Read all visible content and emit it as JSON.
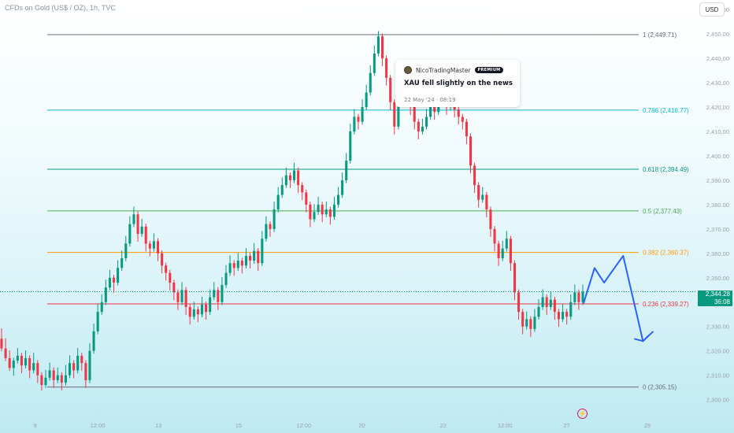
{
  "header": {
    "title": "CFDs on Gold (US$ / OZ), 1h, TVC",
    "currency_button": "USD"
  },
  "price_badge": {
    "price": "2,344.28",
    "countdown": "36:08"
  },
  "idea_card": {
    "author": "NicoTradingMaster",
    "badge": "PREMIUM",
    "headline": "XAU fell slightly on the news",
    "timestamp": "22 May '24 · 08:19"
  },
  "flash_icon": "lightning-icon",
  "colors": {
    "up": "#089981",
    "down": "#f23645",
    "projection": "#2962ff",
    "price_line": "#089981"
  },
  "chart_data": {
    "type": "candlestick",
    "title": "CFDs on Gold (US$ / OZ), 1h, TVC",
    "ylim": [
      2296,
      2462
    ],
    "y_ticks": [
      "2,460.00",
      "2,450.00",
      "2,440.00",
      "2,430.00",
      "2,420.00",
      "2,410.00",
      "2,400.00",
      "2,390.00",
      "2,380.00",
      "2,370.00",
      "2,360.00",
      "2,350.00",
      "2,340.00",
      "2,330.00",
      "2,320.00",
      "2,310.00",
      "2,300.00"
    ],
    "y_tick_values": [
      2460,
      2450,
      2440,
      2430,
      2420,
      2410,
      2400,
      2390,
      2380,
      2370,
      2360,
      2350,
      2340,
      2330,
      2320,
      2310,
      2300
    ],
    "x_ticks": [
      "9",
      "12:00",
      "13",
      "15",
      "12:00",
      "20",
      "22",
      "12:00",
      "27",
      "29"
    ],
    "fib_levels": [
      {
        "ratio": "1",
        "label": "1 (2,449.71)",
        "price": 2449.71,
        "color": "#6a6d78"
      },
      {
        "ratio": "0.786",
        "label": "0.786 (2,418.77)",
        "price": 2418.77,
        "color": "#00bcd4"
      },
      {
        "ratio": "0.618",
        "label": "0.618 (2,394.49)",
        "price": 2394.49,
        "color": "#089981"
      },
      {
        "ratio": "0.5",
        "label": "0.5 (2,377.43)",
        "price": 2377.43,
        "color": "#4caf50"
      },
      {
        "ratio": "0.382",
        "label": "0.382 (2,360.37)",
        "price": 2360.37,
        "color": "#ff9800"
      },
      {
        "ratio": "0.236",
        "label": "0.236 (2,339.27)",
        "price": 2339.27,
        "color": "#f23645"
      },
      {
        "ratio": "0",
        "label": "0 (2,305.15)",
        "price": 2305.15,
        "color": "#6a6d78"
      }
    ],
    "last_price": 2344.28,
    "candles": [
      [
        2325,
        2321,
        2328
      ],
      [
        2321,
        2317,
        2324
      ],
      [
        2317,
        2313,
        2319
      ],
      [
        2313,
        2316,
        2311
      ],
      [
        2316,
        2318,
        2320
      ],
      [
        2318,
        2314,
        2312
      ],
      [
        2314,
        2317,
        2319
      ],
      [
        2317,
        2312,
        2310
      ],
      [
        2312,
        2315,
        2318
      ],
      [
        2315,
        2310,
        2308
      ],
      [
        2310,
        2306,
        2305
      ],
      [
        2306,
        2309,
        2311
      ],
      [
        2309,
        2312,
        2314
      ],
      [
        2312,
        2308,
        2306
      ],
      [
        2308,
        2310,
        2312
      ],
      [
        2310,
        2307,
        2305
      ],
      [
        2307,
        2310,
        2313
      ],
      [
        2310,
        2315,
        2317
      ],
      [
        2315,
        2312,
        2310
      ],
      [
        2312,
        2318,
        2320
      ],
      [
        2318,
        2315,
        2313
      ],
      [
        2315,
        2308,
        2306
      ],
      [
        2308,
        2320,
        2322
      ],
      [
        2320,
        2328,
        2330
      ],
      [
        2328,
        2336,
        2338
      ],
      [
        2336,
        2340,
        2342
      ],
      [
        2340,
        2346,
        2348
      ],
      [
        2346,
        2350,
        2352
      ],
      [
        2350,
        2348,
        2345
      ],
      [
        2348,
        2354,
        2356
      ],
      [
        2354,
        2358,
        2360
      ],
      [
        2358,
        2364,
        2366
      ],
      [
        2364,
        2372,
        2374
      ],
      [
        2372,
        2376,
        2378
      ],
      [
        2376,
        2368,
        2366
      ],
      [
        2368,
        2371,
        2373
      ],
      [
        2371,
        2364,
        2362
      ],
      [
        2364,
        2362,
        2360
      ],
      [
        2362,
        2365,
        2367
      ],
      [
        2365,
        2360,
        2358
      ],
      [
        2360,
        2355,
        2353
      ],
      [
        2355,
        2352,
        2350
      ],
      [
        2352,
        2348,
        2346
      ],
      [
        2348,
        2344,
        2342
      ],
      [
        2344,
        2340,
        2338
      ],
      [
        2340,
        2345,
        2347
      ],
      [
        2345,
        2338,
        2336
      ],
      [
        2338,
        2334,
        2332
      ],
      [
        2334,
        2337,
        2339
      ],
      [
        2337,
        2335,
        2333
      ],
      [
        2335,
        2339,
        2341
      ],
      [
        2339,
        2336,
        2334
      ],
      [
        2336,
        2342,
        2344
      ],
      [
        2342,
        2345,
        2347
      ],
      [
        2345,
        2340,
        2338
      ],
      [
        2340,
        2347,
        2349
      ],
      [
        2347,
        2352,
        2354
      ],
      [
        2352,
        2356,
        2358
      ],
      [
        2356,
        2354,
        2352
      ],
      [
        2354,
        2357,
        2359
      ],
      [
        2357,
        2355,
        2353
      ],
      [
        2355,
        2359,
        2361
      ],
      [
        2359,
        2357,
        2355
      ],
      [
        2357,
        2361,
        2363
      ],
      [
        2361,
        2356,
        2354
      ],
      [
        2356,
        2366,
        2368
      ],
      [
        2366,
        2372,
        2374
      ],
      [
        2372,
        2370,
        2368
      ],
      [
        2370,
        2378,
        2380
      ],
      [
        2378,
        2384,
        2386
      ],
      [
        2384,
        2388,
        2390
      ],
      [
        2388,
        2392,
        2394
      ],
      [
        2392,
        2390,
        2388
      ],
      [
        2390,
        2394,
        2396
      ],
      [
        2394,
        2388,
        2386
      ],
      [
        2388,
        2385,
        2383
      ],
      [
        2385,
        2380,
        2378
      ],
      [
        2380,
        2374,
        2372
      ],
      [
        2374,
        2377,
        2379
      ],
      [
        2377,
        2380,
        2382
      ],
      [
        2380,
        2376,
        2374
      ],
      [
        2376,
        2378,
        2380
      ],
      [
        2378,
        2375,
        2373
      ],
      [
        2375,
        2380,
        2382
      ],
      [
        2380,
        2384,
        2386
      ],
      [
        2384,
        2390,
        2392
      ],
      [
        2390,
        2398,
        2400
      ],
      [
        2398,
        2410,
        2412
      ],
      [
        2410,
        2416,
        2418
      ],
      [
        2416,
        2414,
        2412
      ],
      [
        2414,
        2420,
        2422
      ],
      [
        2420,
        2426,
        2428
      ],
      [
        2426,
        2434,
        2436
      ],
      [
        2434,
        2442,
        2444
      ],
      [
        2442,
        2449,
        2450
      ],
      [
        2449,
        2440,
        2438
      ],
      [
        2440,
        2432,
        2430
      ],
      [
        2432,
        2422,
        2420
      ],
      [
        2422,
        2412,
        2410
      ],
      [
        2412,
        2424,
        2426
      ],
      [
        2424,
        2430,
        2432
      ],
      [
        2430,
        2428,
        2426
      ],
      [
        2428,
        2420,
        2418
      ],
      [
        2420,
        2414,
        2412
      ],
      [
        2414,
        2410,
        2408
      ],
      [
        2410,
        2412,
        2414
      ],
      [
        2412,
        2416,
        2418
      ],
      [
        2416,
        2420,
        2422
      ],
      [
        2420,
        2418,
        2416
      ],
      [
        2418,
        2422,
        2424
      ],
      [
        2422,
        2424,
        2426
      ],
      [
        2424,
        2420,
        2418
      ],
      [
        2420,
        2423,
        2425
      ],
      [
        2423,
        2419,
        2417
      ],
      [
        2419,
        2416,
        2414
      ],
      [
        2416,
        2414,
        2412
      ],
      [
        2414,
        2408,
        2406
      ],
      [
        2408,
        2396,
        2394
      ],
      [
        2396,
        2388,
        2386
      ],
      [
        2388,
        2382,
        2380
      ],
      [
        2382,
        2384,
        2386
      ],
      [
        2384,
        2378,
        2376
      ],
      [
        2378,
        2370,
        2368
      ],
      [
        2370,
        2364,
        2362
      ],
      [
        2364,
        2358,
        2356
      ],
      [
        2358,
        2362,
        2364
      ],
      [
        2362,
        2366,
        2368
      ],
      [
        2366,
        2356,
        2354
      ],
      [
        2356,
        2344,
        2342
      ],
      [
        2344,
        2336,
        2334
      ],
      [
        2336,
        2330,
        2328
      ],
      [
        2330,
        2333,
        2335
      ],
      [
        2333,
        2329,
        2327
      ],
      [
        2329,
        2334,
        2336
      ],
      [
        2334,
        2338,
        2340
      ],
      [
        2338,
        2342,
        2344
      ],
      [
        2342,
        2338,
        2336
      ],
      [
        2338,
        2341,
        2343
      ],
      [
        2341,
        2336,
        2334
      ],
      [
        2336,
        2333,
        2331
      ],
      [
        2333,
        2336,
        2338
      ],
      [
        2336,
        2334,
        2332
      ],
      [
        2334,
        2340,
        2342
      ],
      [
        2340,
        2344,
        2346
      ],
      [
        2344,
        2340,
        2338
      ],
      [
        2340,
        2344.28,
        2346
      ]
    ],
    "projection": [
      {
        "x": 0.795,
        "y": 2339.5
      },
      {
        "x": 0.81,
        "y": 2354
      },
      {
        "x": 0.823,
        "y": 2348
      },
      {
        "x": 0.849,
        "y": 2359
      },
      {
        "x": 0.876,
        "y": 2324
      },
      {
        "x": 0.89,
        "y": 2328
      }
    ]
  }
}
